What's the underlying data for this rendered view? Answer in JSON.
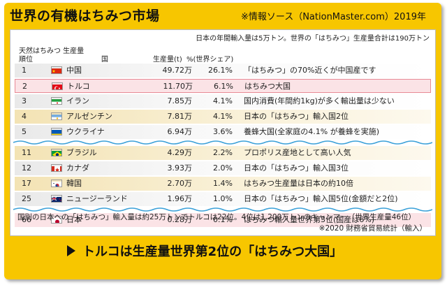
{
  "title": "世界の有機はちみつ市場",
  "source": "※情報ソース（NationMaster.com）2019年",
  "note_top": "日本の年間輸入量は5万トン。世界の「はちみつ」生産量合計は190万トン",
  "headers": {
    "category": "天然はちみつ 生産量",
    "rank": "順位",
    "country": "国",
    "production": "生産量(t)",
    "share": "%(世界シェア)"
  },
  "rows": [
    {
      "rank": "1",
      "flag": "china",
      "country": "中国",
      "production": "49.72万",
      "share": "26.1%",
      "note": "「はちみつ」の70%近くが中国産です",
      "style": "gray"
    },
    {
      "rank": "2",
      "flag": "turkey",
      "country": "トルコ",
      "production": "11.70万",
      "share": "6.1%",
      "note": "はちみつ大国",
      "style": "turkey"
    },
    {
      "rank": "3",
      "flag": "iran",
      "country": "イラン",
      "production": "7.85万",
      "share": "4.1%",
      "note": "国内消費(年間約1kg)が多く輸出量は少ない",
      "style": "gray"
    },
    {
      "rank": "4",
      "flag": "argentina",
      "country": "アルゼンチン",
      "production": "7.81万",
      "share": "4.1%",
      "note": "日本の「はちみつ」輸入国2位",
      "style": "yellow"
    },
    {
      "rank": "5",
      "flag": "ukraine",
      "country": "ウクライナ",
      "production": "6.94万",
      "share": "3.6%",
      "note": "養蜂大国(全家庭の4.1% が養蜂を実施)",
      "style": "gray"
    },
    {
      "rank": "11",
      "flag": "brazil",
      "country": "ブラジル",
      "production": "4.29万",
      "share": "2.2%",
      "note": "プロポリス産地として高い人気",
      "style": "yellow"
    },
    {
      "rank": "12",
      "flag": "canada",
      "country": "カナダ",
      "production": "3.93万",
      "share": "2.0%",
      "note": "日本の「はちみつ」輸入国3位",
      "style": "gray"
    },
    {
      "rank": "17",
      "flag": "korea",
      "country": "韓国",
      "production": "2.70万",
      "share": "1.4%",
      "note": "はちみつ生産量は日本の約10倍",
      "style": "yellow"
    },
    {
      "rank": "25",
      "flag": "newzealand",
      "country": "ニュージーランド",
      "production": "1.96万",
      "share": "1.0%",
      "note": "日本の「はちみつ」輸入国5位(金額だと2位)",
      "style": "gray"
    },
    {
      "rank": "66",
      "flag": "japan",
      "country": "日本",
      "production": "0.28万",
      "share": "0.1%",
      "note": "はちみつ輸入量世界第3位(国産は6%)",
      "style": "pink"
    }
  ],
  "footnote1": "国別の日本への「はちみつ」輸入量は約25万トンでトルコは22位。4位は1,200万トンのキャンマー（世界生産量46位）",
  "footnote2": "※2020 財務省貿易統計（輸入）",
  "banner": "トルコは生産量世界第2位の「はちみつ大国」",
  "colors": {
    "frame": "#f7c600",
    "highlight_border": "#e88a96",
    "wave": "#3aa0d8"
  }
}
